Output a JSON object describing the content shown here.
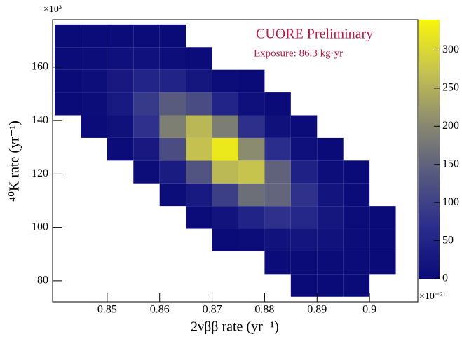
{
  "chart_data": {
    "type": "heatmap",
    "title": "CUORE Preliminary",
    "subtitle": "Exposure: 86.3 kg·yr",
    "x_label": "2νββ rate (yr⁻¹)",
    "y_label": "⁴⁰K rate (yr⁻¹)",
    "x_multiplier": "×10⁻²¹",
    "y_multiplier": "×10³",
    "xlim": [
      0.8396,
      0.9092
    ],
    "ylim": [
      72.1,
      177.8
    ],
    "xticks": [
      0.85,
      0.86,
      0.87,
      0.88,
      0.89,
      0.9
    ],
    "yticks": [
      80,
      100,
      120,
      140,
      160
    ],
    "zlim": [
      0,
      340
    ],
    "zticks": [
      0,
      50,
      100,
      150,
      200,
      250,
      300
    ],
    "colormap": [
      "#0a0a78",
      "#2b2d8c",
      "#55587f",
      "#8a8a70",
      "#c6c350",
      "#f7f50a"
    ],
    "x_edges": [
      0.84,
      0.845,
      0.85,
      0.855,
      0.86,
      0.865,
      0.87,
      0.875,
      0.88,
      0.885,
      0.89,
      0.895,
      0.9,
      0.905,
      0.91
    ],
    "y_edges": [
      74,
      82.5,
      91,
      99.5,
      108,
      116.5,
      125,
      133.5,
      142,
      150.5,
      159,
      167.5,
      176
    ],
    "z": [
      [
        0,
        0,
        0,
        0,
        0,
        0,
        0,
        0,
        0,
        1,
        1,
        1,
        0,
        0
      ],
      [
        0,
        0,
        0,
        0,
        0,
        0,
        0,
        0,
        2,
        4,
        4,
        3,
        1,
        0
      ],
      [
        0,
        0,
        0,
        0,
        0,
        0,
        1,
        6,
        16,
        21,
        15,
        6,
        1,
        0
      ],
      [
        0,
        0,
        0,
        0,
        0,
        3,
        17,
        49,
        73,
        58,
        24,
        6,
        1,
        0
      ],
      [
        0,
        0,
        0,
        0,
        5,
        29,
        97,
        166,
        153,
        74,
        19,
        3,
        0,
        0
      ],
      [
        0,
        0,
        0,
        5,
        34,
        130,
        260,
        274,
        150,
        44,
        7,
        1,
        0,
        0
      ],
      [
        0,
        0,
        3,
        28,
        119,
        270,
        323,
        205,
        68,
        12,
        1,
        0,
        0,
        0
      ],
      [
        0,
        2,
        14,
        73,
        189,
        258,
        186,
        71,
        14,
        2,
        0,
        0,
        0,
        0
      ],
      [
        1,
        5,
        29,
        88,
        140,
        117,
        51,
        12,
        1,
        0,
        0,
        0,
        0,
        0
      ],
      [
        1,
        8,
        28,
        50,
        48,
        24,
        6,
        1,
        0,
        0,
        0,
        0,
        0,
        0
      ],
      [
        2,
        6,
        12,
        13,
        8,
        2,
        0,
        0,
        0,
        0,
        0,
        0,
        0,
        0
      ],
      [
        1,
        2,
        2,
        2,
        1,
        0,
        0,
        0,
        0,
        0,
        0,
        0,
        0,
        0
      ]
    ]
  }
}
